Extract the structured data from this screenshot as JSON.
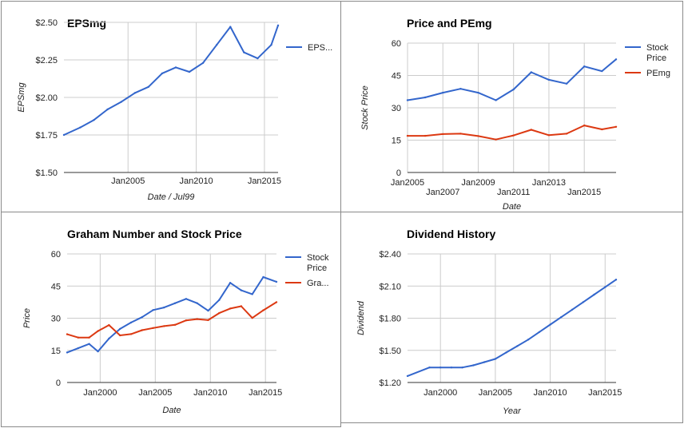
{
  "chart_data": [
    {
      "id": "eps",
      "type": "line",
      "title": "EPSmg",
      "xlabel": "Date / Jul99",
      "ylabel": "EPSmg",
      "xlim": [
        2000.3,
        2016.0
      ],
      "ylim": [
        1.5,
        2.5
      ],
      "y_ticks": [
        {
          "value": 1.5,
          "label": "$1.50"
        },
        {
          "value": 1.75,
          "label": "$1.75"
        },
        {
          "value": 2.0,
          "label": "$2.00"
        },
        {
          "value": 2.25,
          "label": "$2.25"
        },
        {
          "value": 2.5,
          "label": "$2.50"
        }
      ],
      "x_ticks": [
        {
          "value": 2005,
          "label": "Jan2005"
        },
        {
          "value": 2010,
          "label": "Jan2010"
        },
        {
          "value": 2015,
          "label": "Jan2015"
        }
      ],
      "grid": true,
      "legend": "right",
      "series": [
        {
          "name": "EPS...",
          "color": "#3366cc",
          "points": [
            [
              2000.3,
              1.75
            ],
            [
              2001.5,
              1.8
            ],
            [
              2002.5,
              1.85
            ],
            [
              2003.5,
              1.92
            ],
            [
              2004.5,
              1.97
            ],
            [
              2005.5,
              2.03
            ],
            [
              2006.5,
              2.07
            ],
            [
              2007.5,
              2.16
            ],
            [
              2008.5,
              2.2
            ],
            [
              2009.5,
              2.17
            ],
            [
              2010.5,
              2.23
            ],
            [
              2011.5,
              2.35
            ],
            [
              2012.5,
              2.47
            ],
            [
              2013.5,
              2.3
            ],
            [
              2014.5,
              2.26
            ],
            [
              2015.5,
              2.35
            ],
            [
              2016.0,
              2.48
            ]
          ]
        }
      ]
    },
    {
      "id": "pe",
      "type": "line",
      "title": "Price and PEmg",
      "xlabel": "Date",
      "ylabel": "Stock Price",
      "xlim": [
        2005.0,
        2016.8
      ],
      "ylim": [
        0,
        60
      ],
      "y_ticks": [
        {
          "value": 0,
          "label": "0"
        },
        {
          "value": 15,
          "label": "15"
        },
        {
          "value": 30,
          "label": "30"
        },
        {
          "value": 45,
          "label": "45"
        },
        {
          "value": 60,
          "label": "60"
        }
      ],
      "x_ticks": [
        {
          "value": 2005,
          "label": "Jan2005",
          "row": 0
        },
        {
          "value": 2007,
          "label": "Jan2007",
          "row": 1
        },
        {
          "value": 2009,
          "label": "Jan2009",
          "row": 0
        },
        {
          "value": 2011,
          "label": "Jan2011",
          "row": 1
        },
        {
          "value": 2013,
          "label": "Jan2013",
          "row": 0
        },
        {
          "value": 2015,
          "label": "Jan2015",
          "row": 1
        }
      ],
      "grid": true,
      "legend": "right",
      "series": [
        {
          "name": "Stock Price",
          "color": "#3366cc",
          "points": [
            [
              2005.0,
              33.5
            ],
            [
              2006.0,
              34.8
            ],
            [
              2007.0,
              37
            ],
            [
              2008.0,
              38.8
            ],
            [
              2009.0,
              37
            ],
            [
              2010.0,
              33.5
            ],
            [
              2011.0,
              38.5
            ],
            [
              2012.0,
              46.5
            ],
            [
              2013.0,
              43
            ],
            [
              2014.0,
              41.2
            ],
            [
              2015.0,
              49.2
            ],
            [
              2016.0,
              47
            ],
            [
              2016.8,
              52.5
            ]
          ]
        },
        {
          "name": "PEmg",
          "color": "#dc3912",
          "points": [
            [
              2005.0,
              17
            ],
            [
              2006.0,
              17
            ],
            [
              2007.0,
              17.8
            ],
            [
              2008.0,
              18
            ],
            [
              2009.0,
              16.9
            ],
            [
              2010.0,
              15.3
            ],
            [
              2011.0,
              17.2
            ],
            [
              2012.0,
              19.8
            ],
            [
              2013.0,
              17.3
            ],
            [
              2014.0,
              18
            ],
            [
              2015.0,
              21.8
            ],
            [
              2016.0,
              20
            ],
            [
              2016.8,
              21.2
            ]
          ]
        }
      ]
    },
    {
      "id": "graham",
      "type": "line",
      "title": "Graham Number and Stock Price",
      "xlabel": "Date",
      "ylabel": "Price",
      "xlim": [
        1997.0,
        2016.0
      ],
      "ylim": [
        0,
        60
      ],
      "y_ticks": [
        {
          "value": 0,
          "label": "0"
        },
        {
          "value": 15,
          "label": "15"
        },
        {
          "value": 30,
          "label": "30"
        },
        {
          "value": 45,
          "label": "45"
        },
        {
          "value": 60,
          "label": "60"
        }
      ],
      "x_ticks": [
        {
          "value": 2000,
          "label": "Jan2000"
        },
        {
          "value": 2005,
          "label": "Jan2005"
        },
        {
          "value": 2010,
          "label": "Jan2010"
        },
        {
          "value": 2015,
          "label": "Jan2015"
        }
      ],
      "grid": true,
      "legend": "right",
      "series": [
        {
          "name": "Stock Price",
          "color": "#3366cc",
          "points": [
            [
              1997,
              14
            ],
            [
              1998,
              16
            ],
            [
              1999,
              18
            ],
            [
              1999.8,
              14.5
            ],
            [
              2000.8,
              20.5
            ],
            [
              2001.8,
              25
            ],
            [
              2002.8,
              28
            ],
            [
              2003.8,
              30.5
            ],
            [
              2004.8,
              33.8
            ],
            [
              2005.8,
              35
            ],
            [
              2006.8,
              37
            ],
            [
              2007.8,
              39
            ],
            [
              2008.8,
              37
            ],
            [
              2009.8,
              33.5
            ],
            [
              2010.8,
              38.5
            ],
            [
              2011.8,
              46.5
            ],
            [
              2012.8,
              43
            ],
            [
              2013.8,
              41.2
            ],
            [
              2014.8,
              49.2
            ],
            [
              2016.0,
              47
            ]
          ]
        },
        {
          "name": "Gra...",
          "color": "#dc3912",
          "points": [
            [
              1997,
              22.5
            ],
            [
              1998,
              21
            ],
            [
              1999,
              21
            ],
            [
              1999.8,
              24
            ],
            [
              2000.8,
              26.8
            ],
            [
              2001.8,
              22
            ],
            [
              2002.8,
              22.6
            ],
            [
              2003.8,
              24.4
            ],
            [
              2004.8,
              25.4
            ],
            [
              2005.8,
              26.3
            ],
            [
              2006.8,
              26.9
            ],
            [
              2007.8,
              29
            ],
            [
              2008.8,
              29.6
            ],
            [
              2009.8,
              29.1
            ],
            [
              2010.8,
              32.4
            ],
            [
              2011.8,
              34.5
            ],
            [
              2012.8,
              35.6
            ],
            [
              2013.8,
              30.1
            ],
            [
              2014.8,
              33.7
            ],
            [
              2016.0,
              37.5
            ]
          ]
        }
      ]
    },
    {
      "id": "dividend",
      "type": "line",
      "title": "Dividend History",
      "xlabel": "Year",
      "ylabel": "Dividend",
      "xlim": [
        1997.0,
        2016.0
      ],
      "ylim": [
        1.2,
        2.4
      ],
      "y_ticks": [
        {
          "value": 1.2,
          "label": "$1.20"
        },
        {
          "value": 1.5,
          "label": "$1.50"
        },
        {
          "value": 1.8,
          "label": "$1.80"
        },
        {
          "value": 2.1,
          "label": "$2.10"
        },
        {
          "value": 2.4,
          "label": "$2.40"
        }
      ],
      "x_ticks": [
        {
          "value": 2000,
          "label": "Jan2000"
        },
        {
          "value": 2005,
          "label": "Jan2005"
        },
        {
          "value": 2010,
          "label": "Jan2010"
        },
        {
          "value": 2015,
          "label": "Jan2015"
        }
      ],
      "grid": true,
      "legend": "none",
      "series": [
        {
          "color": "#3366cc",
          "points": [
            [
              1997,
              1.26
            ],
            [
              1999,
              1.34
            ],
            [
              2000,
              1.34
            ],
            [
              2001,
              1.34
            ],
            [
              2002,
              1.34
            ],
            [
              2003,
              1.36
            ],
            [
              2004,
              1.39
            ],
            [
              2005,
              1.42
            ],
            [
              2006,
              1.48
            ],
            [
              2007,
              1.54
            ],
            [
              2008,
              1.6
            ],
            [
              2009,
              1.67
            ],
            [
              2010,
              1.74
            ],
            [
              2011,
              1.81
            ],
            [
              2012,
              1.88
            ],
            [
              2013,
              1.95
            ],
            [
              2014,
              2.02
            ],
            [
              2015,
              2.09
            ],
            [
              2016,
              2.16
            ]
          ]
        }
      ]
    }
  ]
}
